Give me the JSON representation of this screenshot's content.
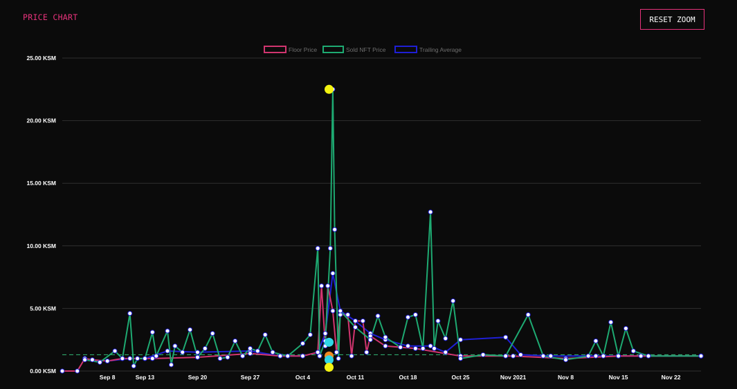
{
  "header": {
    "title": "PRICE CHART",
    "reset_label": "RESET ZOOM"
  },
  "chart_data": {
    "type": "line",
    "legend_position": "top-center",
    "grid": "horizontal",
    "ylim": [
      0,
      25
    ],
    "y_ticks": [
      "0.00 KSM",
      "5.00 KSM",
      "10.00 KSM",
      "15.00 KSM",
      "20.00 KSM",
      "25.00 KSM"
    ],
    "x_ticks": [
      "Sep 8",
      "Sep 13",
      "Sep 20",
      "Sep 27",
      "Oct 4",
      "Oct 11",
      "Oct 18",
      "Oct 25",
      "Nov 2021",
      "Nov 8",
      "Nov 15",
      "Nov 22"
    ],
    "xlim": [
      "2021-09-02",
      "2021-11-26"
    ],
    "reference_line": {
      "value": 1.3,
      "color": "#2ea86b",
      "style": "dashed"
    },
    "series": [
      {
        "name": "Floor Price",
        "color": "#d1356f",
        "points": [
          [
            "2021-09-02",
            0.0
          ],
          [
            "2021-09-04",
            0.0
          ],
          [
            "2021-09-05",
            1.0
          ],
          [
            "2021-09-06",
            0.9
          ],
          [
            "2021-09-08",
            0.8
          ],
          [
            "2021-09-10",
            1.0
          ],
          [
            "2021-09-14",
            1.0
          ],
          [
            "2021-09-20",
            1.1
          ],
          [
            "2021-09-27",
            1.4
          ],
          [
            "2021-10-01",
            1.2
          ],
          [
            "2021-10-04",
            1.2
          ],
          [
            "2021-10-06",
            1.5
          ],
          [
            "2021-10-06T12:00",
            6.8
          ],
          [
            "2021-10-07",
            2.0
          ],
          [
            "2021-10-07T08:00",
            6.8
          ],
          [
            "2021-10-08",
            4.8
          ],
          [
            "2021-10-08T12:00",
            1.5
          ],
          [
            "2021-10-09",
            4.5
          ],
          [
            "2021-10-10",
            4.5
          ],
          [
            "2021-10-10T12:00",
            1.2
          ],
          [
            "2021-10-11",
            4.0
          ],
          [
            "2021-10-12",
            4.0
          ],
          [
            "2021-10-12T12:00",
            1.5
          ],
          [
            "2021-10-13",
            2.8
          ],
          [
            "2021-10-15",
            2.0
          ],
          [
            "2021-10-19",
            1.8
          ],
          [
            "2021-10-25",
            1.2
          ],
          [
            "2021-11-01",
            1.2
          ],
          [
            "2021-11-08",
            1.0
          ],
          [
            "2021-11-15",
            1.2
          ],
          [
            "2021-11-26",
            1.2
          ]
        ]
      },
      {
        "name": "Sold NFT Price",
        "color": "#1eaa72",
        "points": [
          [
            "2021-09-05",
            0.9
          ],
          [
            "2021-09-07",
            0.7
          ],
          [
            "2021-09-09",
            1.6
          ],
          [
            "2021-09-10",
            1.0
          ],
          [
            "2021-09-11",
            4.6
          ],
          [
            "2021-09-11T12:00",
            0.4
          ],
          [
            "2021-09-12",
            1.0
          ],
          [
            "2021-09-13",
            1.0
          ],
          [
            "2021-09-14",
            3.1
          ],
          [
            "2021-09-14T12:00",
            1.2
          ],
          [
            "2021-09-16",
            3.2
          ],
          [
            "2021-09-16T12:00",
            0.5
          ],
          [
            "2021-09-17",
            2.0
          ],
          [
            "2021-09-18",
            1.5
          ],
          [
            "2021-09-19",
            3.3
          ],
          [
            "2021-09-20",
            1.1
          ],
          [
            "2021-09-21",
            1.8
          ],
          [
            "2021-09-22",
            3.0
          ],
          [
            "2021-09-23",
            1.0
          ],
          [
            "2021-09-24",
            1.1
          ],
          [
            "2021-09-25",
            2.4
          ],
          [
            "2021-09-26",
            1.2
          ],
          [
            "2021-09-27",
            1.8
          ],
          [
            "2021-09-28",
            1.6
          ],
          [
            "2021-09-29",
            2.9
          ],
          [
            "2021-09-30",
            1.5
          ],
          [
            "2021-10-02",
            1.2
          ],
          [
            "2021-10-04",
            2.2
          ],
          [
            "2021-10-05",
            2.9
          ],
          [
            "2021-10-06",
            9.8
          ],
          [
            "2021-10-06T06:00",
            1.2
          ],
          [
            "2021-10-07",
            2.4
          ],
          [
            "2021-10-07T16:00",
            9.8
          ],
          [
            "2021-10-08",
            22.5
          ],
          [
            "2021-10-08T06:00",
            11.3
          ],
          [
            "2021-10-08T18:00",
            1.0
          ],
          [
            "2021-10-09",
            4.8
          ],
          [
            "2021-10-11",
            3.5
          ],
          [
            "2021-10-13",
            2.5
          ],
          [
            "2021-10-14",
            4.4
          ],
          [
            "2021-10-15",
            2.7
          ],
          [
            "2021-10-17",
            1.9
          ],
          [
            "2021-10-18",
            4.3
          ],
          [
            "2021-10-19",
            4.5
          ],
          [
            "2021-10-20",
            1.8
          ],
          [
            "2021-10-21",
            12.7
          ],
          [
            "2021-10-21T12:00",
            1.8
          ],
          [
            "2021-10-22",
            4.0
          ],
          [
            "2021-10-23",
            2.6
          ],
          [
            "2021-10-24",
            5.6
          ],
          [
            "2021-10-25",
            1.0
          ],
          [
            "2021-10-28",
            1.3
          ],
          [
            "2021-10-31",
            1.2
          ],
          [
            "2021-11-03",
            4.5
          ],
          [
            "2021-11-05",
            1.2
          ],
          [
            "2021-11-08",
            0.9
          ],
          [
            "2021-11-11",
            1.2
          ],
          [
            "2021-11-12",
            2.4
          ],
          [
            "2021-11-13",
            1.2
          ],
          [
            "2021-11-14",
            3.9
          ],
          [
            "2021-11-15",
            1.2
          ],
          [
            "2021-11-16",
            3.4
          ],
          [
            "2021-11-17",
            1.6
          ],
          [
            "2021-11-19",
            1.2
          ],
          [
            "2021-11-26",
            1.2
          ]
        ]
      },
      {
        "name": "Trailing Average",
        "color": "#1f1fd6",
        "points": [
          [
            "2021-09-05",
            0.9
          ],
          [
            "2021-09-08",
            0.8
          ],
          [
            "2021-09-11",
            1.0
          ],
          [
            "2021-09-13",
            1.0
          ],
          [
            "2021-09-16",
            1.6
          ],
          [
            "2021-09-20",
            1.5
          ],
          [
            "2021-09-27",
            1.6
          ],
          [
            "2021-10-01",
            1.2
          ],
          [
            "2021-10-04",
            1.2
          ],
          [
            "2021-10-06",
            1.5
          ],
          [
            "2021-10-07",
            3.0
          ],
          [
            "2021-10-08",
            7.8
          ],
          [
            "2021-10-09",
            4.8
          ],
          [
            "2021-10-11",
            4.0
          ],
          [
            "2021-10-13",
            3.0
          ],
          [
            "2021-10-15",
            2.5
          ],
          [
            "2021-10-18",
            2.0
          ],
          [
            "2021-10-21",
            2.0
          ],
          [
            "2021-10-23",
            1.5
          ],
          [
            "2021-10-25",
            2.5
          ],
          [
            "2021-10-31",
            2.7
          ],
          [
            "2021-11-02",
            1.3
          ],
          [
            "2021-11-06",
            1.2
          ],
          [
            "2021-11-12",
            1.2
          ],
          [
            "2021-11-18",
            1.2
          ],
          [
            "2021-11-26",
            1.2
          ]
        ]
      }
    ],
    "highlights": [
      {
        "x": "2021-10-07T12:00",
        "y": 22.5,
        "color": "#f3f311"
      },
      {
        "x": "2021-10-07T12:00",
        "y": 2.3,
        "color": "#2fd7e6"
      },
      {
        "x": "2021-10-07T12:00",
        "y": 1.2,
        "color": "#ee8a22"
      },
      {
        "x": "2021-10-07T12:00",
        "y": 0.9,
        "color": "#2fd7e6"
      },
      {
        "x": "2021-10-07T12:00",
        "y": 0.3,
        "color": "#f3f311"
      }
    ]
  }
}
